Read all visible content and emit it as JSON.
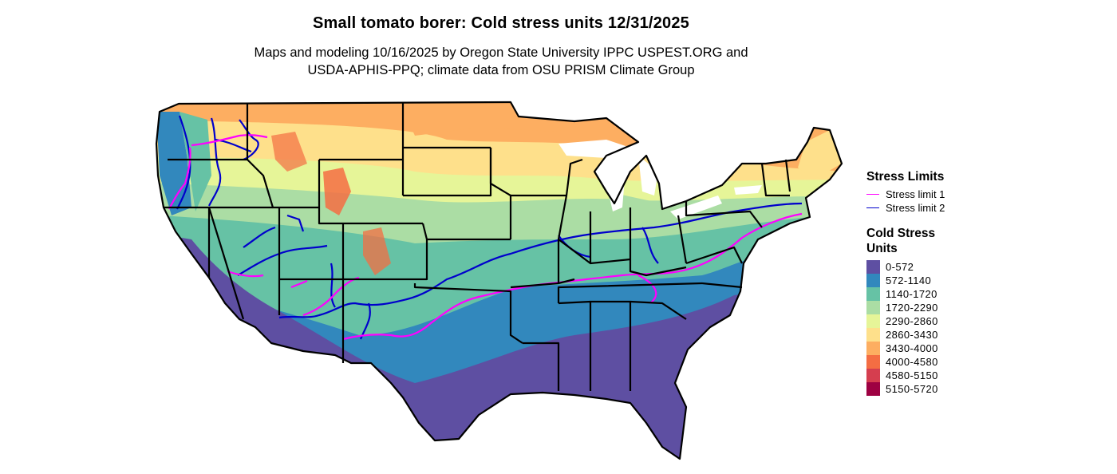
{
  "title": "Small tomato borer: Cold stress units 12/31/2025",
  "subtitle_line1": "Maps and modeling 10/16/2025 by Oregon State University IPPC USPEST.ORG and",
  "subtitle_line2": "USDA-APHIS-PPQ; climate data from OSU PRISM Climate Group",
  "stress_limits": {
    "title": "Stress Limits",
    "items": [
      {
        "label": "Stress limit 1",
        "color": "#ff00ff"
      },
      {
        "label": "Stress limit 2",
        "color": "#0000cc"
      }
    ]
  },
  "cold_stress_units": {
    "title_line1": "Cold Stress",
    "title_line2": "Units",
    "bins": [
      {
        "label": "0-572",
        "color": "#5e4fa2"
      },
      {
        "label": "572-1140",
        "color": "#3288bd"
      },
      {
        "label": "1140-1720",
        "color": "#66c2a5"
      },
      {
        "label": "1720-2290",
        "color": "#abdda4"
      },
      {
        "label": "2290-2860",
        "color": "#e6f598"
      },
      {
        "label": "2860-3430",
        "color": "#fee08b"
      },
      {
        "label": "3430-4000",
        "color": "#fdae61"
      },
      {
        "label": "4000-4580",
        "color": "#f46d43"
      },
      {
        "label": "4580-5150",
        "color": "#d53e4f"
      },
      {
        "label": "5150-5720",
        "color": "#9e0142"
      }
    ]
  }
}
